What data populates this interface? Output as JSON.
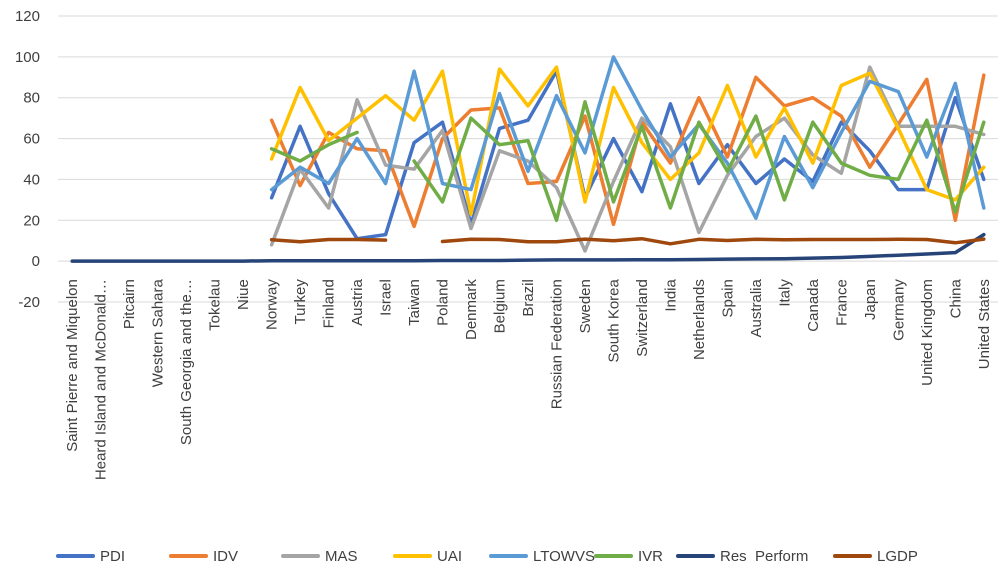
{
  "chart_data": {
    "type": "line",
    "title": "",
    "xlabel": "",
    "ylabel": "",
    "ylim": [
      -20,
      120
    ],
    "yticks": [
      -20,
      0,
      20,
      40,
      60,
      80,
      100,
      120
    ],
    "grid": "horizontal",
    "legend_position": "bottom",
    "categories": [
      "Saint Pierre and Miquelon",
      "Heard Island and McDonald…",
      "Pitcairn",
      "Western Sahara",
      "South Georgia and the…",
      "Tokelau",
      "Niue",
      "Norway",
      "Turkey",
      "Finland",
      "Austria",
      "Israel",
      "Taiwan",
      "Poland",
      "Denmark",
      "Belgium",
      "Brazil",
      "Russian Federation",
      "Sweden",
      "South Korea",
      "Switzerland",
      "India",
      "Netherlands",
      "Spain",
      "Australia",
      "Italy",
      "Canada",
      "France",
      "Japan",
      "Germany",
      "United Kingdom",
      "China",
      "United States"
    ],
    "series": [
      {
        "name": "PDI",
        "color": "#4472C4",
        "values": [
          null,
          null,
          null,
          null,
          null,
          null,
          null,
          31,
          66,
          33,
          11,
          13,
          58,
          68,
          18,
          65,
          69,
          93,
          31,
          60,
          34,
          77,
          38,
          57,
          38,
          50,
          39,
          68,
          54,
          35,
          35,
          80,
          40
        ]
      },
      {
        "name": "IDV",
        "color": "#ED7D31",
        "values": [
          null,
          null,
          null,
          null,
          null,
          null,
          null,
          69,
          37,
          63,
          55,
          54,
          17,
          60,
          74,
          75,
          38,
          39,
          71,
          18,
          68,
          48,
          80,
          51,
          90,
          76,
          80,
          71,
          46,
          67,
          89,
          20,
          91
        ]
      },
      {
        "name": "MAS",
        "color": "#A5A5A5",
        "values": [
          null,
          null,
          null,
          null,
          null,
          null,
          null,
          8,
          45,
          26,
          79,
          47,
          45,
          64,
          16,
          54,
          49,
          36,
          5,
          39,
          70,
          56,
          14,
          42,
          61,
          70,
          52,
          43,
          95,
          66,
          66,
          66,
          62
        ]
      },
      {
        "name": "UAI",
        "color": "#FFC000",
        "values": [
          null,
          null,
          null,
          null,
          null,
          null,
          null,
          50,
          85,
          59,
          70,
          81,
          69,
          93,
          23,
          94,
          76,
          95,
          29,
          85,
          58,
          40,
          53,
          86,
          51,
          75,
          48,
          86,
          92,
          65,
          35,
          30,
          46
        ]
      },
      {
        "name": "LTOWVS",
        "color": "#5B9BD5",
        "values": [
          null,
          null,
          null,
          null,
          null,
          null,
          null,
          35,
          46,
          38,
          60,
          38,
          93,
          38,
          35,
          82,
          44,
          81,
          53,
          100,
          74,
          51,
          67,
          48,
          21,
          61,
          36,
          63,
          88,
          83,
          51,
          87,
          26
        ]
      },
      {
        "name": "IVR",
        "color": "#70AD47",
        "values": [
          null,
          null,
          null,
          null,
          null,
          null,
          null,
          55,
          49,
          57,
          63,
          null,
          49,
          29,
          70,
          57,
          59,
          20,
          78,
          29,
          66,
          26,
          68,
          44,
          71,
          30,
          68,
          48,
          42,
          40,
          69,
          24,
          68
        ]
      },
      {
        "name": "Res_Perform",
        "color": "#264478",
        "values": [
          0,
          0,
          0,
          0,
          0,
          0,
          0,
          0.2,
          0.2,
          0.2,
          0.2,
          0.2,
          0.2,
          0.3,
          0.3,
          0.3,
          0.5,
          0.6,
          0.6,
          0.6,
          0.7,
          0.7,
          0.8,
          1.0,
          1.1,
          1.2,
          1.5,
          1.8,
          2.3,
          2.9,
          3.5,
          4.2,
          13
        ]
      },
      {
        "name": "LGDP",
        "color": "#9E480E",
        "values": [
          null,
          null,
          null,
          null,
          null,
          null,
          null,
          10.5,
          9.5,
          10.6,
          10.6,
          10.3,
          null,
          9.6,
          10.7,
          10.6,
          9.5,
          9.5,
          10.8,
          10.0,
          11.0,
          8.5,
          10.7,
          10.1,
          10.7,
          10.5,
          10.6,
          10.6,
          10.6,
          10.7,
          10.6,
          9.0,
          10.8
        ]
      }
    ]
  }
}
